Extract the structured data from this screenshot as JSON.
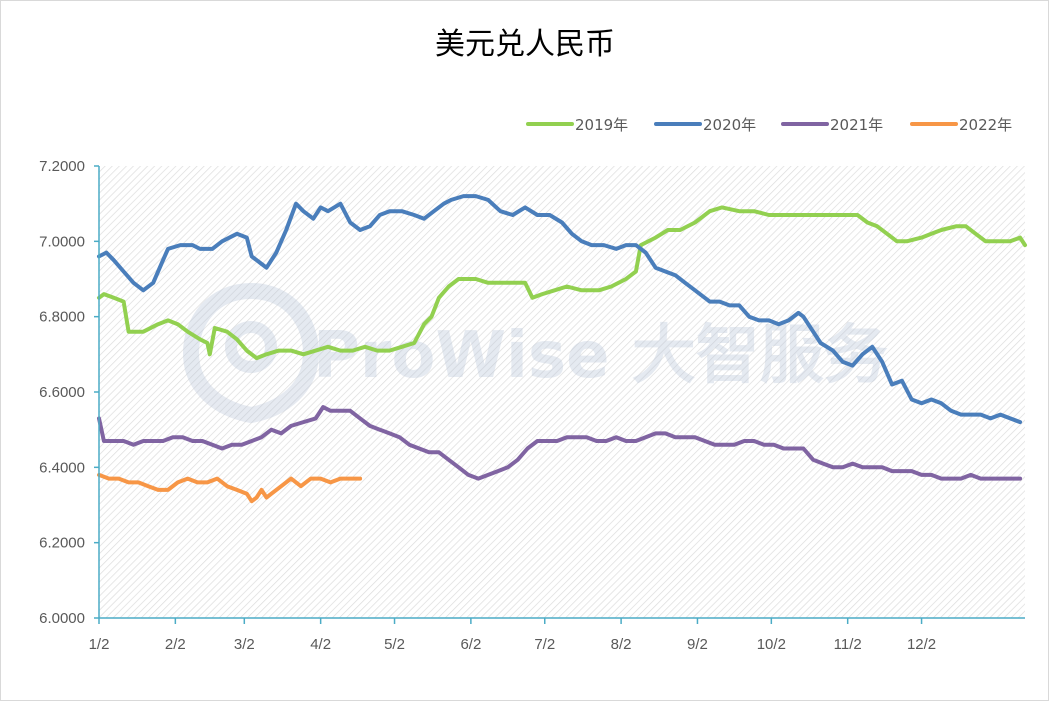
{
  "chart_data": {
    "type": "line",
    "title": "美元兑人民币",
    "xlabel": "",
    "ylabel": "",
    "ylim": [
      6.0,
      7.2
    ],
    "yticks": [
      "6.0000",
      "6.2000",
      "6.4000",
      "6.6000",
      "6.8000",
      "7.0000",
      "7.2000"
    ],
    "x_tick_labels": [
      "1/2",
      "2/2",
      "3/2",
      "4/2",
      "5/2",
      "6/2",
      "7/2",
      "8/2",
      "9/2",
      "10/2",
      "11/2",
      "12/2"
    ],
    "x_unit": "day_of_year",
    "grid": "hatched background, no gridlines",
    "legend_position": "top-right",
    "watermark": "ProWise 大智服务",
    "series": [
      {
        "name": "2019年",
        "color": "#92d050",
        "points": [
          [
            2,
            6.85
          ],
          [
            4,
            6.86
          ],
          [
            8,
            6.85
          ],
          [
            12,
            6.84
          ],
          [
            14,
            6.76
          ],
          [
            20,
            6.76
          ],
          [
            26,
            6.78
          ],
          [
            30,
            6.79
          ],
          [
            34,
            6.78
          ],
          [
            38,
            6.76
          ],
          [
            43,
            6.74
          ],
          [
            46,
            6.73
          ],
          [
            47,
            6.7
          ],
          [
            49,
            6.77
          ],
          [
            54,
            6.76
          ],
          [
            58,
            6.74
          ],
          [
            62,
            6.71
          ],
          [
            66,
            6.69
          ],
          [
            70,
            6.7
          ],
          [
            75,
            6.71
          ],
          [
            80,
            6.71
          ],
          [
            85,
            6.7
          ],
          [
            90,
            6.71
          ],
          [
            95,
            6.72
          ],
          [
            100,
            6.71
          ],
          [
            105,
            6.71
          ],
          [
            110,
            6.72
          ],
          [
            115,
            6.71
          ],
          [
            120,
            6.71
          ],
          [
            125,
            6.72
          ],
          [
            130,
            6.73
          ],
          [
            134,
            6.78
          ],
          [
            137,
            6.8
          ],
          [
            140,
            6.85
          ],
          [
            144,
            6.88
          ],
          [
            148,
            6.9
          ],
          [
            155,
            6.9
          ],
          [
            160,
            6.89
          ],
          [
            168,
            6.89
          ],
          [
            175,
            6.89
          ],
          [
            178,
            6.85
          ],
          [
            182,
            6.86
          ],
          [
            187,
            6.87
          ],
          [
            192,
            6.88
          ],
          [
            198,
            6.87
          ],
          [
            205,
            6.87
          ],
          [
            210,
            6.88
          ],
          [
            216,
            6.9
          ],
          [
            220,
            6.92
          ],
          [
            222,
            6.99
          ],
          [
            228,
            7.01
          ],
          [
            233,
            7.03
          ],
          [
            238,
            7.03
          ],
          [
            244,
            7.05
          ],
          [
            250,
            7.08
          ],
          [
            255,
            7.09
          ],
          [
            262,
            7.08
          ],
          [
            268,
            7.08
          ],
          [
            274,
            7.07
          ],
          [
            282,
            7.07
          ],
          [
            292,
            7.07
          ],
          [
            300,
            7.07
          ],
          [
            305,
            7.07
          ],
          [
            310,
            7.07
          ],
          [
            314,
            7.05
          ],
          [
            318,
            7.04
          ],
          [
            322,
            7.02
          ],
          [
            326,
            7.0
          ],
          [
            330,
            7.0
          ],
          [
            336,
            7.01
          ],
          [
            340,
            7.02
          ],
          [
            344,
            7.03
          ],
          [
            350,
            7.04
          ],
          [
            354,
            7.04
          ],
          [
            358,
            7.02
          ],
          [
            362,
            7.0
          ],
          [
            366,
            7.0
          ],
          [
            372,
            7.0
          ],
          [
            376,
            7.01
          ],
          [
            378,
            6.99
          ]
        ]
      },
      {
        "name": "2020年",
        "color": "#4a7ebb",
        "points": [
          [
            2,
            6.96
          ],
          [
            5,
            6.97
          ],
          [
            8,
            6.95
          ],
          [
            12,
            6.92
          ],
          [
            16,
            6.89
          ],
          [
            20,
            6.87
          ],
          [
            24,
            6.89
          ],
          [
            28,
            6.95
          ],
          [
            30,
            6.98
          ],
          [
            35,
            6.99
          ],
          [
            40,
            6.99
          ],
          [
            43,
            6.98
          ],
          [
            46,
            6.98
          ],
          [
            48,
            6.98
          ],
          [
            52,
            7.0
          ],
          [
            55,
            7.01
          ],
          [
            58,
            7.02
          ],
          [
            62,
            7.01
          ],
          [
            64,
            6.96
          ],
          [
            68,
            6.94
          ],
          [
            70,
            6.93
          ],
          [
            74,
            6.97
          ],
          [
            78,
            7.03
          ],
          [
            82,
            7.1
          ],
          [
            85,
            7.08
          ],
          [
            89,
            7.06
          ],
          [
            92,
            7.09
          ],
          [
            95,
            7.08
          ],
          [
            100,
            7.1
          ],
          [
            104,
            7.05
          ],
          [
            108,
            7.03
          ],
          [
            112,
            7.04
          ],
          [
            116,
            7.07
          ],
          [
            120,
            7.08
          ],
          [
            125,
            7.08
          ],
          [
            130,
            7.07
          ],
          [
            134,
            7.06
          ],
          [
            138,
            7.08
          ],
          [
            142,
            7.1
          ],
          [
            145,
            7.11
          ],
          [
            150,
            7.12
          ],
          [
            155,
            7.12
          ],
          [
            160,
            7.11
          ],
          [
            165,
            7.08
          ],
          [
            170,
            7.07
          ],
          [
            175,
            7.09
          ],
          [
            180,
            7.07
          ],
          [
            185,
            7.07
          ],
          [
            190,
            7.05
          ],
          [
            194,
            7.02
          ],
          [
            198,
            7.0
          ],
          [
            202,
            6.99
          ],
          [
            207,
            6.99
          ],
          [
            212,
            6.98
          ],
          [
            216,
            6.99
          ],
          [
            220,
            6.99
          ],
          [
            224,
            6.97
          ],
          [
            228,
            6.93
          ],
          [
            232,
            6.92
          ],
          [
            236,
            6.91
          ],
          [
            240,
            6.89
          ],
          [
            244,
            6.87
          ],
          [
            248,
            6.85
          ],
          [
            250,
            6.84
          ],
          [
            254,
            6.84
          ],
          [
            258,
            6.83
          ],
          [
            262,
            6.83
          ],
          [
            266,
            6.8
          ],
          [
            270,
            6.79
          ],
          [
            274,
            6.79
          ],
          [
            278,
            6.78
          ],
          [
            282,
            6.79
          ],
          [
            286,
            6.81
          ],
          [
            288,
            6.8
          ],
          [
            292,
            6.76
          ],
          [
            295,
            6.73
          ],
          [
            300,
            6.71
          ],
          [
            304,
            6.68
          ],
          [
            308,
            6.67
          ],
          [
            312,
            6.7
          ],
          [
            316,
            6.72
          ],
          [
            320,
            6.68
          ],
          [
            324,
            6.62
          ],
          [
            328,
            6.63
          ],
          [
            332,
            6.58
          ],
          [
            336,
            6.57
          ],
          [
            340,
            6.58
          ],
          [
            344,
            6.57
          ],
          [
            348,
            6.55
          ],
          [
            352,
            6.54
          ],
          [
            356,
            6.54
          ],
          [
            360,
            6.54
          ],
          [
            364,
            6.53
          ],
          [
            368,
            6.54
          ],
          [
            372,
            6.53
          ],
          [
            376,
            6.52
          ]
        ]
      },
      {
        "name": "2021年",
        "color": "#8064a2",
        "points": [
          [
            2,
            6.53
          ],
          [
            4,
            6.47
          ],
          [
            8,
            6.47
          ],
          [
            12,
            6.47
          ],
          [
            16,
            6.46
          ],
          [
            20,
            6.47
          ],
          [
            24,
            6.47
          ],
          [
            28,
            6.47
          ],
          [
            32,
            6.48
          ],
          [
            36,
            6.48
          ],
          [
            40,
            6.47
          ],
          [
            44,
            6.47
          ],
          [
            48,
            6.46
          ],
          [
            52,
            6.45
          ],
          [
            56,
            6.46
          ],
          [
            60,
            6.46
          ],
          [
            64,
            6.47
          ],
          [
            68,
            6.48
          ],
          [
            72,
            6.5
          ],
          [
            76,
            6.49
          ],
          [
            80,
            6.51
          ],
          [
            85,
            6.52
          ],
          [
            90,
            6.53
          ],
          [
            93,
            6.56
          ],
          [
            96,
            6.55
          ],
          [
            100,
            6.55
          ],
          [
            104,
            6.55
          ],
          [
            108,
            6.53
          ],
          [
            112,
            6.51
          ],
          [
            116,
            6.5
          ],
          [
            120,
            6.49
          ],
          [
            124,
            6.48
          ],
          [
            128,
            6.46
          ],
          [
            132,
            6.45
          ],
          [
            136,
            6.44
          ],
          [
            140,
            6.44
          ],
          [
            144,
            6.42
          ],
          [
            148,
            6.4
          ],
          [
            152,
            6.38
          ],
          [
            156,
            6.37
          ],
          [
            160,
            6.38
          ],
          [
            164,
            6.39
          ],
          [
            168,
            6.4
          ],
          [
            172,
            6.42
          ],
          [
            176,
            6.45
          ],
          [
            180,
            6.47
          ],
          [
            184,
            6.47
          ],
          [
            188,
            6.47
          ],
          [
            192,
            6.48
          ],
          [
            196,
            6.48
          ],
          [
            200,
            6.48
          ],
          [
            204,
            6.47
          ],
          [
            208,
            6.47
          ],
          [
            212,
            6.48
          ],
          [
            216,
            6.47
          ],
          [
            220,
            6.47
          ],
          [
            224,
            6.48
          ],
          [
            228,
            6.49
          ],
          [
            232,
            6.49
          ],
          [
            236,
            6.48
          ],
          [
            240,
            6.48
          ],
          [
            244,
            6.48
          ],
          [
            248,
            6.47
          ],
          [
            252,
            6.46
          ],
          [
            256,
            6.46
          ],
          [
            260,
            6.46
          ],
          [
            264,
            6.47
          ],
          [
            268,
            6.47
          ],
          [
            272,
            6.46
          ],
          [
            276,
            6.46
          ],
          [
            280,
            6.45
          ],
          [
            284,
            6.45
          ],
          [
            288,
            6.45
          ],
          [
            292,
            6.42
          ],
          [
            296,
            6.41
          ],
          [
            300,
            6.4
          ],
          [
            304,
            6.4
          ],
          [
            308,
            6.41
          ],
          [
            312,
            6.4
          ],
          [
            316,
            6.4
          ],
          [
            320,
            6.4
          ],
          [
            324,
            6.39
          ],
          [
            328,
            6.39
          ],
          [
            332,
            6.39
          ],
          [
            336,
            6.38
          ],
          [
            340,
            6.38
          ],
          [
            344,
            6.37
          ],
          [
            348,
            6.37
          ],
          [
            352,
            6.37
          ],
          [
            356,
            6.38
          ],
          [
            360,
            6.37
          ],
          [
            364,
            6.37
          ],
          [
            368,
            6.37
          ],
          [
            372,
            6.37
          ],
          [
            376,
            6.37
          ]
        ]
      },
      {
        "name": "2022年",
        "color": "#f79646",
        "points": [
          [
            2,
            6.38
          ],
          [
            6,
            6.37
          ],
          [
            10,
            6.37
          ],
          [
            14,
            6.36
          ],
          [
            18,
            6.36
          ],
          [
            22,
            6.35
          ],
          [
            26,
            6.34
          ],
          [
            30,
            6.34
          ],
          [
            34,
            6.36
          ],
          [
            38,
            6.37
          ],
          [
            42,
            6.36
          ],
          [
            46,
            6.36
          ],
          [
            50,
            6.37
          ],
          [
            54,
            6.35
          ],
          [
            58,
            6.34
          ],
          [
            62,
            6.33
          ],
          [
            64,
            6.31
          ],
          [
            66,
            6.32
          ],
          [
            68,
            6.34
          ],
          [
            70,
            6.32
          ],
          [
            72,
            6.33
          ],
          [
            76,
            6.35
          ],
          [
            80,
            6.37
          ],
          [
            84,
            6.35
          ],
          [
            88,
            6.37
          ],
          [
            92,
            6.37
          ],
          [
            96,
            6.36
          ],
          [
            100,
            6.37
          ],
          [
            104,
            6.37
          ],
          [
            106,
            6.37
          ],
          [
            108,
            6.37
          ]
        ]
      }
    ]
  }
}
